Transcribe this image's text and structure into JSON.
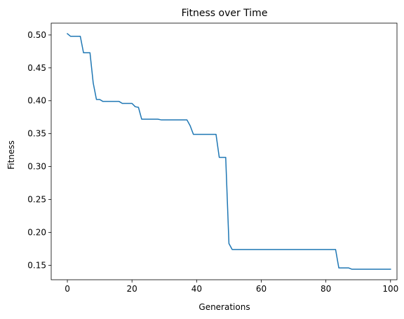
{
  "chart_data": {
    "type": "line",
    "title": "Fitness over Time",
    "xlabel": "Generations",
    "ylabel": "Fitness",
    "xlim": [
      -5,
      102
    ],
    "ylim": [
      0.128,
      0.518
    ],
    "xticks": [
      0,
      20,
      40,
      60,
      80,
      100
    ],
    "xtick_labels": [
      "0",
      "20",
      "40",
      "60",
      "80",
      "100"
    ],
    "yticks": [
      0.15,
      0.2,
      0.25,
      0.3,
      0.35,
      0.4,
      0.45,
      0.5
    ],
    "ytick_labels": [
      "0.15",
      "0.20",
      "0.25",
      "0.30",
      "0.35",
      "0.40",
      "0.45",
      "0.50"
    ],
    "grid": false,
    "series": [
      {
        "color": "#1f77b4",
        "x": [
          0,
          1,
          2,
          3,
          4,
          5,
          6,
          7,
          8,
          9,
          10,
          11,
          12,
          13,
          14,
          15,
          16,
          17,
          18,
          19,
          20,
          21,
          22,
          23,
          24,
          25,
          26,
          27,
          28,
          29,
          30,
          31,
          32,
          33,
          34,
          35,
          36,
          37,
          38,
          39,
          40,
          41,
          42,
          43,
          44,
          45,
          46,
          47,
          48,
          49,
          50,
          51,
          52,
          53,
          54,
          55,
          56,
          57,
          58,
          59,
          60,
          61,
          62,
          63,
          64,
          65,
          66,
          67,
          68,
          69,
          70,
          71,
          72,
          73,
          74,
          75,
          76,
          77,
          78,
          79,
          80,
          81,
          82,
          83,
          84,
          85,
          86,
          87,
          88,
          89,
          90,
          91,
          92,
          93,
          94,
          95,
          96,
          97,
          98,
          99,
          100
        ],
        "y": [
          0.502,
          0.498,
          0.498,
          0.498,
          0.498,
          0.473,
          0.473,
          0.473,
          0.427,
          0.402,
          0.402,
          0.399,
          0.399,
          0.399,
          0.399,
          0.399,
          0.399,
          0.396,
          0.396,
          0.396,
          0.396,
          0.391,
          0.39,
          0.372,
          0.372,
          0.372,
          0.372,
          0.372,
          0.372,
          0.371,
          0.371,
          0.371,
          0.371,
          0.371,
          0.371,
          0.371,
          0.371,
          0.371,
          0.362,
          0.349,
          0.349,
          0.349,
          0.349,
          0.349,
          0.349,
          0.349,
          0.349,
          0.314,
          0.314,
          0.314,
          0.183,
          0.174,
          0.174,
          0.174,
          0.174,
          0.174,
          0.174,
          0.174,
          0.174,
          0.174,
          0.174,
          0.174,
          0.174,
          0.174,
          0.174,
          0.174,
          0.174,
          0.174,
          0.174,
          0.174,
          0.174,
          0.174,
          0.174,
          0.174,
          0.174,
          0.174,
          0.174,
          0.174,
          0.174,
          0.174,
          0.174,
          0.174,
          0.174,
          0.174,
          0.146,
          0.146,
          0.146,
          0.146,
          0.144,
          0.144,
          0.144,
          0.144,
          0.144,
          0.144,
          0.144,
          0.144,
          0.144,
          0.144,
          0.144,
          0.144,
          0.144
        ]
      }
    ]
  }
}
